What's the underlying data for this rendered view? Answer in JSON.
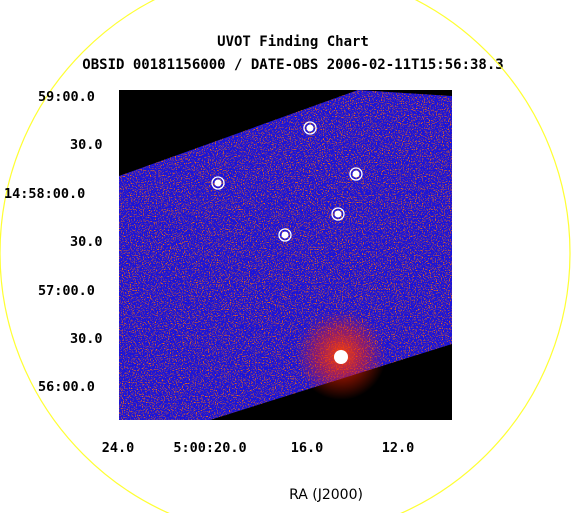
{
  "chart_data": {
    "type": "image",
    "title": "UVOT Finding Chart",
    "subtitle": "OBSID 00181156000 / DATE-OBS 2006-02-11T15:56:38.3",
    "xlabel": "RA (J2000)",
    "ylabel": "",
    "x_ticks": [
      "24.0",
      "5:00:20.0",
      "16.0",
      "12.0"
    ],
    "y_ticks": [
      "59:00.0",
      "30.0",
      "14:58:00.0",
      "30.0",
      "57:00.0",
      "30.0",
      "56:00.0"
    ],
    "colors": {
      "field_circle": "#ffff33",
      "background": "#000000",
      "image_low": "#1a14d9",
      "image_high": "#ff3300",
      "source_marker": "#ffffff"
    },
    "sources_circled": 6,
    "grid": false
  }
}
